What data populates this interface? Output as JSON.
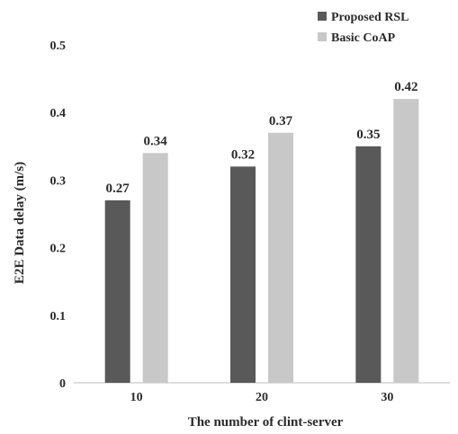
{
  "chart_data": {
    "type": "bar",
    "categories": [
      "10",
      "20",
      "30"
    ],
    "series": [
      {
        "name": "Proposed RSL",
        "values": [
          0.27,
          0.32,
          0.35
        ],
        "color": "#595959"
      },
      {
        "name": "Basic CoAP",
        "values": [
          0.34,
          0.37,
          0.42
        ],
        "color": "#c8c8c8"
      }
    ],
    "value_labels": [
      [
        "0.27",
        "0.32",
        "0.35"
      ],
      [
        "0.34",
        "0.37",
        "0.42"
      ]
    ],
    "xlabel": "The number  of clint-server",
    "ylabel": "E2E Data delay (m/s)",
    "ylim": [
      0,
      0.5
    ],
    "yticks": [
      "0",
      "0.1",
      "0.2",
      "0.3",
      "0.4",
      "0.5"
    ],
    "grid": false,
    "legend_position": "top-right"
  }
}
